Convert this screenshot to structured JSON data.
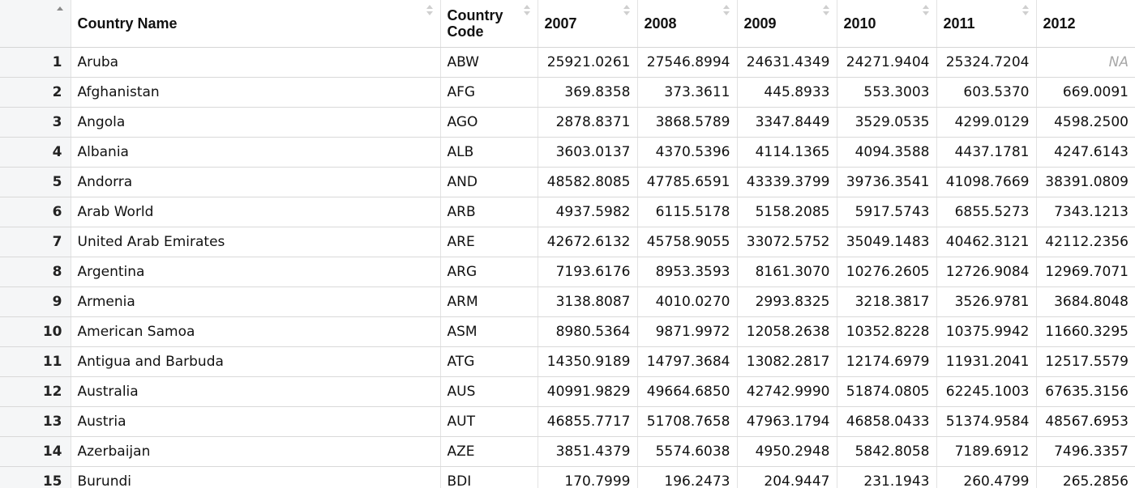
{
  "columns": [
    "",
    "Country Name",
    "Country Code",
    "2007",
    "2008",
    "2009",
    "2010",
    "2011",
    "2012"
  ],
  "rows": [
    [
      "1",
      "Aruba",
      "ABW",
      "25921.0261",
      "27546.8994",
      "24631.4349",
      "24271.9404",
      "25324.7204",
      "NA"
    ],
    [
      "2",
      "Afghanistan",
      "AFG",
      "369.8358",
      "373.3611",
      "445.8933",
      "553.3003",
      "603.5370",
      "669.0091"
    ],
    [
      "3",
      "Angola",
      "AGO",
      "2878.8371",
      "3868.5789",
      "3347.8449",
      "3529.0535",
      "4299.0129",
      "4598.2500"
    ],
    [
      "4",
      "Albania",
      "ALB",
      "3603.0137",
      "4370.5396",
      "4114.1365",
      "4094.3588",
      "4437.1781",
      "4247.6143"
    ],
    [
      "5",
      "Andorra",
      "AND",
      "48582.8085",
      "47785.6591",
      "43339.3799",
      "39736.3541",
      "41098.7669",
      "38391.0809"
    ],
    [
      "6",
      "Arab World",
      "ARB",
      "4937.5982",
      "6115.5178",
      "5158.2085",
      "5917.5743",
      "6855.5273",
      "7343.1213"
    ],
    [
      "7",
      "United Arab Emirates",
      "ARE",
      "42672.6132",
      "45758.9055",
      "33072.5752",
      "35049.1483",
      "40462.3121",
      "42112.2356"
    ],
    [
      "8",
      "Argentina",
      "ARG",
      "7193.6176",
      "8953.3593",
      "8161.3070",
      "10276.2605",
      "12726.9084",
      "12969.7071"
    ],
    [
      "9",
      "Armenia",
      "ARM",
      "3138.8087",
      "4010.0270",
      "2993.8325",
      "3218.3817",
      "3526.9781",
      "3684.8048"
    ],
    [
      "10",
      "American Samoa",
      "ASM",
      "8980.5364",
      "9871.9972",
      "12058.2638",
      "10352.8228",
      "10375.9942",
      "11660.3295"
    ],
    [
      "11",
      "Antigua and Barbuda",
      "ATG",
      "14350.9189",
      "14797.3684",
      "13082.2817",
      "12174.6979",
      "11931.2041",
      "12517.5579"
    ],
    [
      "12",
      "Australia",
      "AUS",
      "40991.9829",
      "49664.6850",
      "42742.9990",
      "51874.0805",
      "62245.1003",
      "67635.3156"
    ],
    [
      "13",
      "Austria",
      "AUT",
      "46855.7717",
      "51708.7658",
      "47963.1794",
      "46858.0433",
      "51374.9584",
      "48567.6953"
    ],
    [
      "14",
      "Azerbaijan",
      "AZE",
      "3851.4379",
      "5574.6038",
      "4950.2948",
      "5842.8058",
      "7189.6912",
      "7496.3357"
    ],
    [
      "15",
      "Burundi",
      "BDI",
      "170.7999",
      "196.2473",
      "204.9447",
      "231.1943",
      "260.4799",
      "265.2856"
    ]
  ],
  "na_value": "NA",
  "icons": {
    "sort": "sort-arrows-icon"
  },
  "colors": {
    "row_number_background": "#f5f6f7",
    "grid_line": "#e3e3e3",
    "na_text": "#a8a8a8"
  }
}
